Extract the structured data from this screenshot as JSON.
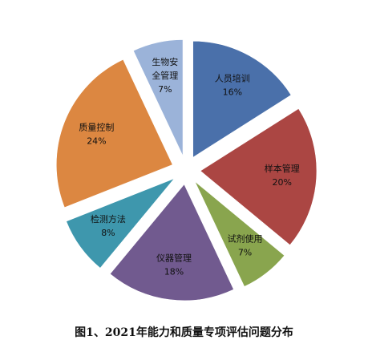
{
  "chart_data": {
    "type": "pie",
    "exploded": true,
    "caption": "图1、2021年能力和质量专项评估问题分布",
    "slices": [
      {
        "name": "人员培训",
        "value": 16,
        "percent_label": "16%",
        "color": "#4a70aa"
      },
      {
        "name": "样本管理",
        "value": 20,
        "percent_label": "20%",
        "color": "#ab4643"
      },
      {
        "name": "试剂使用",
        "value": 7,
        "percent_label": "7%",
        "color": "#89a54e"
      },
      {
        "name": "仪器管理",
        "value": 18,
        "percent_label": "18%",
        "color": "#715a8f"
      },
      {
        "name": "检测方法",
        "value": 8,
        "percent_label": "8%",
        "color": "#3e97ad"
      },
      {
        "name": "质量控制",
        "value": 24,
        "percent_label": "24%",
        "color": "#dc8741"
      },
      {
        "name": "生物安全管理",
        "value": 7,
        "percent_label": "7%",
        "color": "#9bb3d9"
      }
    ]
  }
}
